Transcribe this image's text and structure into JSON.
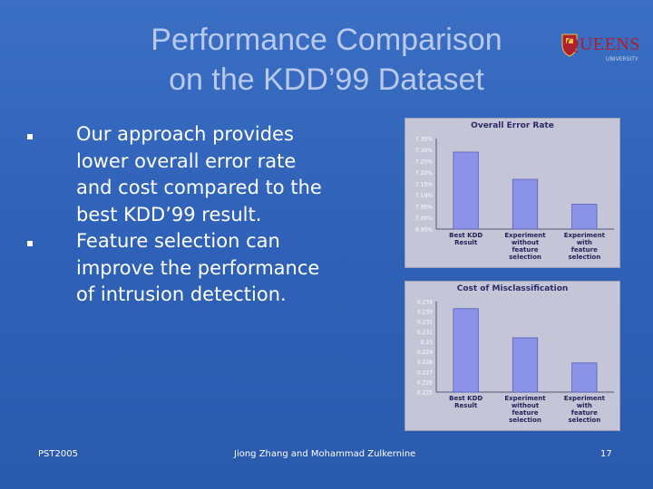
{
  "slide": {
    "title_line1": "Performance Comparison",
    "title_line2": "on the KDD’99 Dataset",
    "logo_text": "QUEENS",
    "logo_sub": "UNIVERSITY",
    "bullets": [
      "Our approach provides lower overall error rate and cost compared to the best KDD’99 result.",
      "Feature selection can improve the performance of intrusion detection."
    ],
    "footer_left": "PST2005",
    "footer_center": "Jiong Zhang and Mohammad Zulkernine",
    "footer_right": "17"
  },
  "colors": {
    "bar": "#8b93e8",
    "bar_edge": "#5a5fb0",
    "plot_bg": "#c4c6d8"
  },
  "chart_data": [
    {
      "type": "bar",
      "title": "Overall Error Rate",
      "categories": [
        "Best KDD Result",
        "Experiment without feature selection",
        "Experiment with feature selection"
      ],
      "y_ticks": [
        "7.35%",
        "7.30%",
        "7.25%",
        "7.20%",
        "7.15%",
        "7.10%",
        "7.05%",
        "7.00%",
        "6.95%"
      ],
      "ylim": [
        6.95,
        7.35
      ],
      "values": [
        7.29,
        7.17,
        7.06
      ],
      "grid": false,
      "legend": "none"
    },
    {
      "type": "bar",
      "title": "Cost of Misclassification",
      "categories": [
        "Best KDD Result",
        "Experiment without feature selection",
        "Experiment with feature selection"
      ],
      "y_ticks": [
        "0.234",
        "0.233",
        "0.232",
        "0.231",
        "0.23",
        "0.229",
        "0.228",
        "0.227",
        "0.226",
        "0.225"
      ],
      "ylim": [
        0.225,
        0.234
      ],
      "values": [
        0.2333,
        0.2304,
        0.2279
      ],
      "grid": false,
      "legend": "none"
    }
  ]
}
